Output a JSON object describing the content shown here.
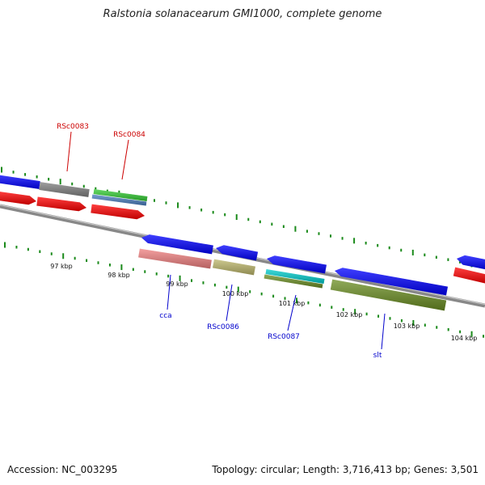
{
  "title": "Ralstonia solanacearum GMI1000, complete genome",
  "footer": {
    "accession": "Accession: NC_003295",
    "topology": "Topology: circular; Length: 3,716,413 bp; Genes: 3,501"
  },
  "scale_labels": [
    "97 kbp",
    "98 kbp",
    "99 kbp",
    "100 kbp",
    "101 kbp",
    "102 kbp",
    "103 kbp",
    "104 kbp"
  ],
  "gene_labels": {
    "top": [
      "RSc0083",
      "RSc0084"
    ],
    "bottom": [
      "cca",
      "RSc0086",
      "RSc0087",
      "slt"
    ]
  },
  "colors": {
    "red": "#ff0000",
    "blue": "#0000ff",
    "gray": "#808080",
    "green": "#33cc33",
    "steelblue": "#4a7fc0",
    "salmon": "#f08080",
    "khaki": "#bdb76b",
    "cyan": "#00cccc",
    "olive": "#6b8e23",
    "tick": "#1a8a1a",
    "label_red": "#cc0000",
    "label_blue": "#0000cc"
  }
}
